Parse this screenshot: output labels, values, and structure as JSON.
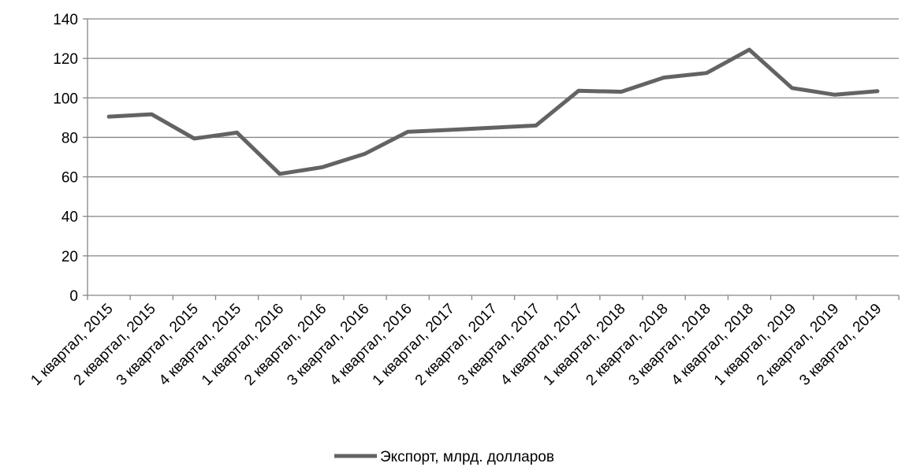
{
  "chart_data": {
    "type": "line",
    "categories": [
      "1 квартал, 2015",
      "2 квартал, 2015",
      "3 квартал, 2015",
      "4 квартал, 2015",
      "1 квартал, 2016",
      "2 квартал, 2016",
      "3 квартал, 2016",
      "4 квартал, 2016",
      "1 квартал, 2017",
      "2 квартал, 2017",
      "3 квартал, 2017",
      "4 квартал, 2017",
      "1 квартал, 2018",
      "2 квартал, 2018",
      "3 квартал, 2018",
      "4 квартал, 2018",
      "1 квартал, 2019",
      "2 квартал, 2019",
      "3 квартал, 2019"
    ],
    "series": [
      {
        "name": "Экспорт, млрд. долларов",
        "values": [
          90.5,
          91.7,
          79.4,
          82.4,
          61.5,
          64.9,
          71.7,
          82.8,
          83.8,
          84.9,
          86.0,
          103.6,
          103.1,
          110.3,
          112.6,
          124.4,
          105.0,
          101.6,
          103.4
        ]
      }
    ],
    "ylim": [
      0,
      140
    ],
    "yticks": [
      0,
      20,
      40,
      60,
      80,
      100,
      120,
      140
    ],
    "grid": true,
    "legend_position": "bottom",
    "title": "",
    "xlabel": "",
    "ylabel": "",
    "colors": {
      "line": "#636363",
      "grid": "#868686",
      "axis": "#868686"
    }
  }
}
